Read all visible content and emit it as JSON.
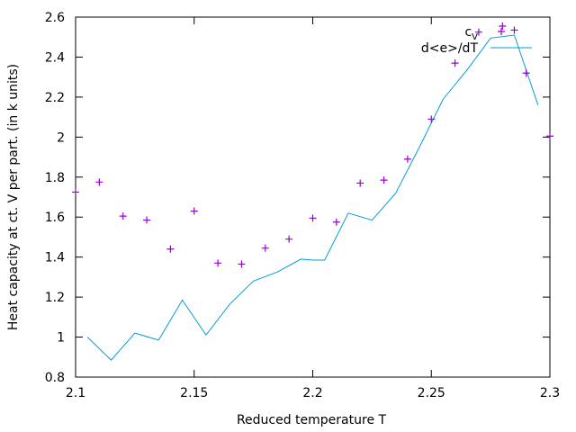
{
  "chart_data": {
    "type": "scatter",
    "title": "",
    "xlabel": "Reduced temperature T",
    "ylabel": "Heat capacity at ct. V per part. (in k units)",
    "xlim": [
      2.1,
      2.3
    ],
    "ylim": [
      0.8,
      2.6
    ],
    "xticks": [
      2.1,
      2.15,
      2.2,
      2.25,
      2.3
    ],
    "xtick_labels": [
      "2.1",
      "2.15",
      "2.2",
      "2.25",
      "2.3"
    ],
    "yticks": [
      0.8,
      1.0,
      1.2,
      1.4,
      1.6,
      1.8,
      2.0,
      2.2,
      2.4,
      2.6
    ],
    "ytick_labels": [
      "0.8",
      "1",
      "1.2",
      "1.4",
      "1.6",
      "1.8",
      "2",
      "2.2",
      "2.4",
      "2.6"
    ],
    "grid": false,
    "legend": "top-right",
    "series": [
      {
        "name": "c",
        "name_sub": "V",
        "kind": "points",
        "marker": "plus",
        "color": "#9400d3",
        "x": [
          2.1,
          2.11,
          2.12,
          2.13,
          2.14,
          2.15,
          2.16,
          2.17,
          2.18,
          2.19,
          2.2,
          2.21,
          2.22,
          2.23,
          2.24,
          2.25,
          2.26,
          2.27,
          2.28,
          2.285,
          2.29,
          2.3
        ],
        "y": [
          1.725,
          1.775,
          1.605,
          1.585,
          1.44,
          1.63,
          1.37,
          1.365,
          1.445,
          1.49,
          1.595,
          1.575,
          1.77,
          1.785,
          1.89,
          2.09,
          2.37,
          2.525,
          2.555,
          2.535,
          2.32,
          2.005
        ]
      },
      {
        "name": "d<e>/dT",
        "kind": "line",
        "color": "#009ed7",
        "x": [
          2.105,
          2.115,
          2.125,
          2.135,
          2.145,
          2.155,
          2.165,
          2.175,
          2.185,
          2.195,
          2.2,
          2.205,
          2.215,
          2.225,
          2.235,
          2.245,
          2.255,
          2.265,
          2.275,
          2.285,
          2.295
        ],
        "y": [
          1.0,
          0.885,
          1.02,
          0.985,
          1.185,
          1.01,
          1.165,
          1.28,
          1.325,
          1.39,
          1.385,
          1.385,
          1.62,
          1.585,
          1.72,
          1.95,
          2.19,
          2.335,
          2.495,
          2.51,
          2.16
        ]
      }
    ]
  }
}
